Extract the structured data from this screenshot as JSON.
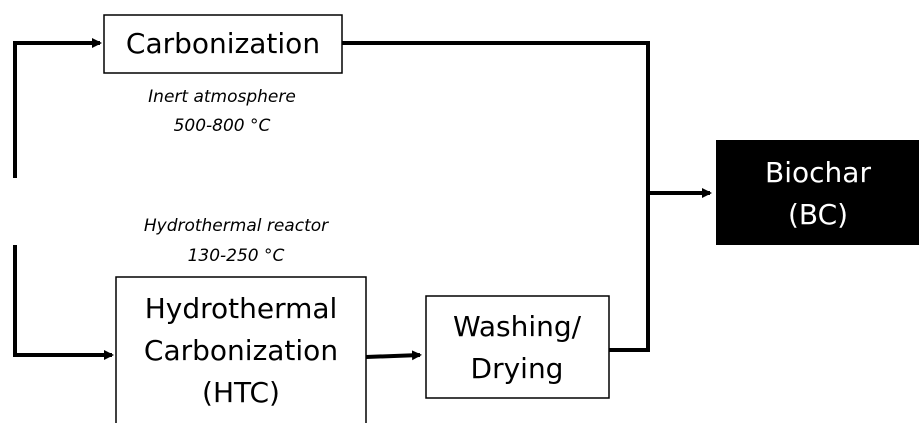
{
  "nodes": [
    {
      "label": "Carbonization"
    },
    {
      "label": "Hydrothermal Carbonization (HTC)",
      "lines": [
        "Hydrothermal",
        "Carbonization",
        "(HTC)"
      ]
    },
    {
      "lines": [
        "Washing/",
        "Drying"
      ]
    },
    {
      "lines": [
        "Biochar",
        "(BC)"
      ]
    }
  ],
  "annotations": [
    {
      "lines": [
        "Inert atmosphere",
        "500-800 °C"
      ]
    },
    {
      "lines": [
        "Hydrothermal reactor",
        "130-250 °C"
      ]
    }
  ]
}
